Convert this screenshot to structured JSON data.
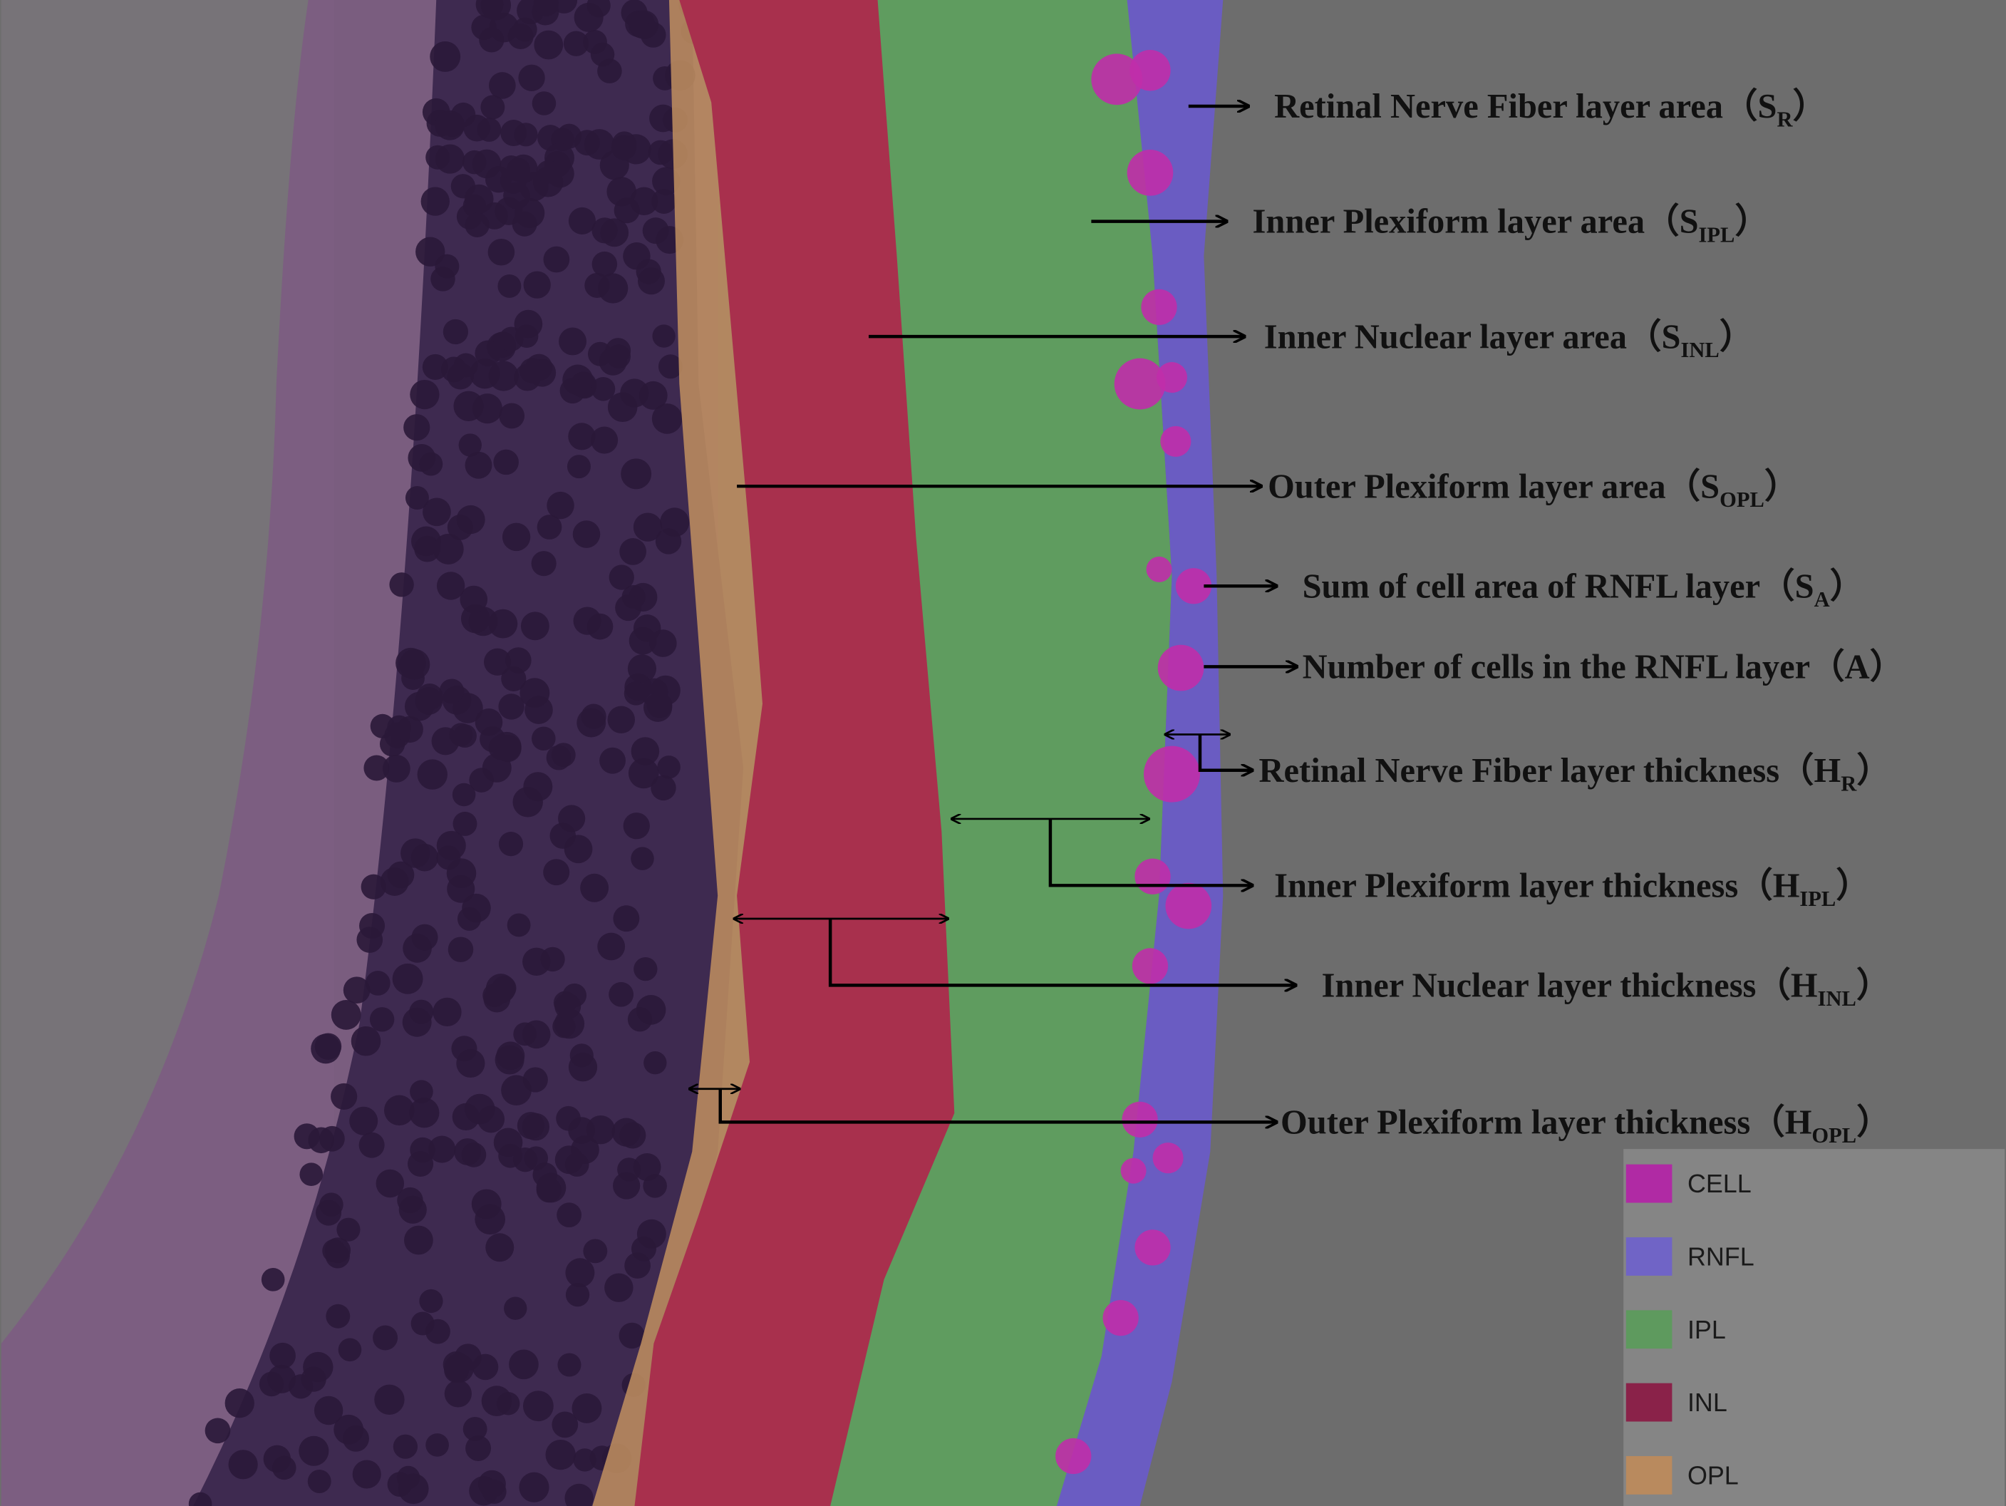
{
  "brackets": [
    "（",
    "）"
  ],
  "annotations": [
    {
      "label": "Retinal Nerve Fiber layer area",
      "symbol": "S",
      "subscript": "R"
    },
    {
      "label": "Inner Plexiform layer area",
      "symbol": "S",
      "subscript": "IPL"
    },
    {
      "label": "Inner Nuclear layer area",
      "symbol": "S",
      "subscript": "INL"
    },
    {
      "label": "Outer Plexiform layer area",
      "symbol": "S",
      "subscript": "OPL"
    },
    {
      "label": "Sum of cell area of RNFL layer",
      "symbol": "S",
      "subscript": "A"
    },
    {
      "label": "Number of cells in the RNFL layer",
      "symbol": "A",
      "subscript": null
    },
    {
      "label": "Retinal Nerve Fiber layer  thickness",
      "symbol": "H",
      "subscript": "R"
    },
    {
      "label": "Inner Plexiform layer thickness",
      "symbol": "H",
      "subscript": "IPL"
    },
    {
      "label": "Inner Nuclear layer thickness",
      "symbol": "H",
      "subscript": "INL"
    },
    {
      "label": "Outer Plexiform layer thickness",
      "symbol": "H",
      "subscript": "OPL"
    }
  ],
  "legend": [
    {
      "label": "CELL",
      "color": "#b02aa4"
    },
    {
      "label": "RNFL",
      "color": "#7064c6"
    },
    {
      "label": "IPL",
      "color": "#5e9a5e"
    },
    {
      "label": "INL",
      "color": "#8a2249"
    },
    {
      "label": "OPL",
      "color": "#b98a5e"
    }
  ]
}
